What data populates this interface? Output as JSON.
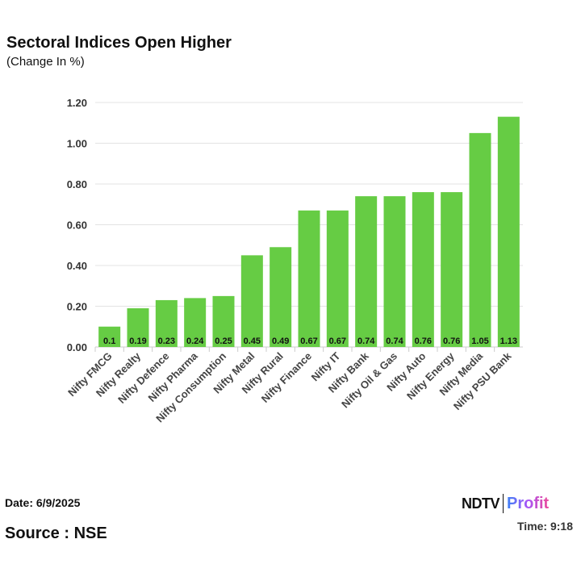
{
  "header": {
    "title": "Sectoral Indices Open Higher",
    "subtitle": "(Change In %)"
  },
  "footer": {
    "date": "Date: 6/9/2025",
    "source": "Source : NSE",
    "time": "Time: 9:18",
    "logo_text": "NDTV Profit"
  },
  "chart_data": {
    "type": "bar",
    "title": "Sectoral Indices Open Higher",
    "subtitle": "(Change In %)",
    "categories": [
      "Nifty FMCG",
      "Nifty Realty",
      "Nifty Defence",
      "Nifty Pharma",
      "Nifty Consumption",
      "Nifty Metal",
      "Nifty Rural",
      "Nifty Finance",
      "Nifty IT",
      "Nifty Bank",
      "Nifty Oil & Gas",
      "Nifty Auto",
      "Nifty Energy",
      "Nifty Media",
      "Nifty PSU Bank"
    ],
    "values": [
      0.1,
      0.19,
      0.23,
      0.24,
      0.25,
      0.45,
      0.49,
      0.67,
      0.67,
      0.74,
      0.74,
      0.76,
      0.76,
      1.05,
      1.13
    ],
    "data_labels": [
      "0.1",
      "0.19",
      "0.23",
      "0.24",
      "0.25",
      "0.45",
      "0.49",
      "0.67",
      "0.67",
      "0.74",
      "0.74",
      "0.76",
      "0.76",
      "1.05",
      "1.13"
    ],
    "ylim": [
      0,
      1.2
    ],
    "yticks": [
      "0.00",
      "0.20",
      "0.40",
      "0.60",
      "0.80",
      "1.00",
      "1.20"
    ],
    "grid": true,
    "bar_color": "#66cc44",
    "legend": "none"
  }
}
